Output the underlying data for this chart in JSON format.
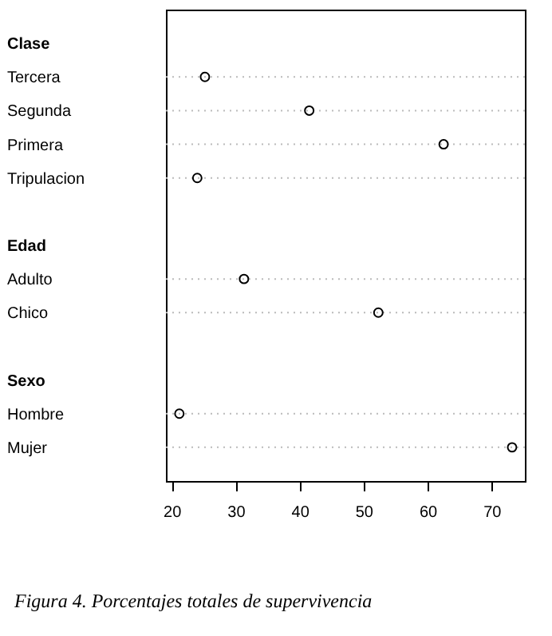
{
  "chart_data": {
    "type": "scatter",
    "orientation": "horizontal",
    "categories": [
      "Clase",
      "Tercera",
      "Segunda",
      "Primera",
      "Tripulacion",
      null,
      "Edad",
      "Adulto",
      "Chico",
      null,
      "Sexo",
      "Hombre",
      "Mujer"
    ],
    "values": [
      null,
      25.2,
      41.5,
      62.5,
      24.0,
      null,
      null,
      31.3,
      52.3,
      null,
      null,
      21.2,
      73.2
    ],
    "color": "#000000",
    "marker": "circle",
    "grid": "y",
    "line_style": "dotted",
    "xlim": [
      19.1,
      75.2
    ],
    "xticks": [
      20,
      30,
      40,
      50,
      60,
      70
    ],
    "annotations": [
      "Figura 4. Porcentajes totales de supervivencia"
    ]
  }
}
